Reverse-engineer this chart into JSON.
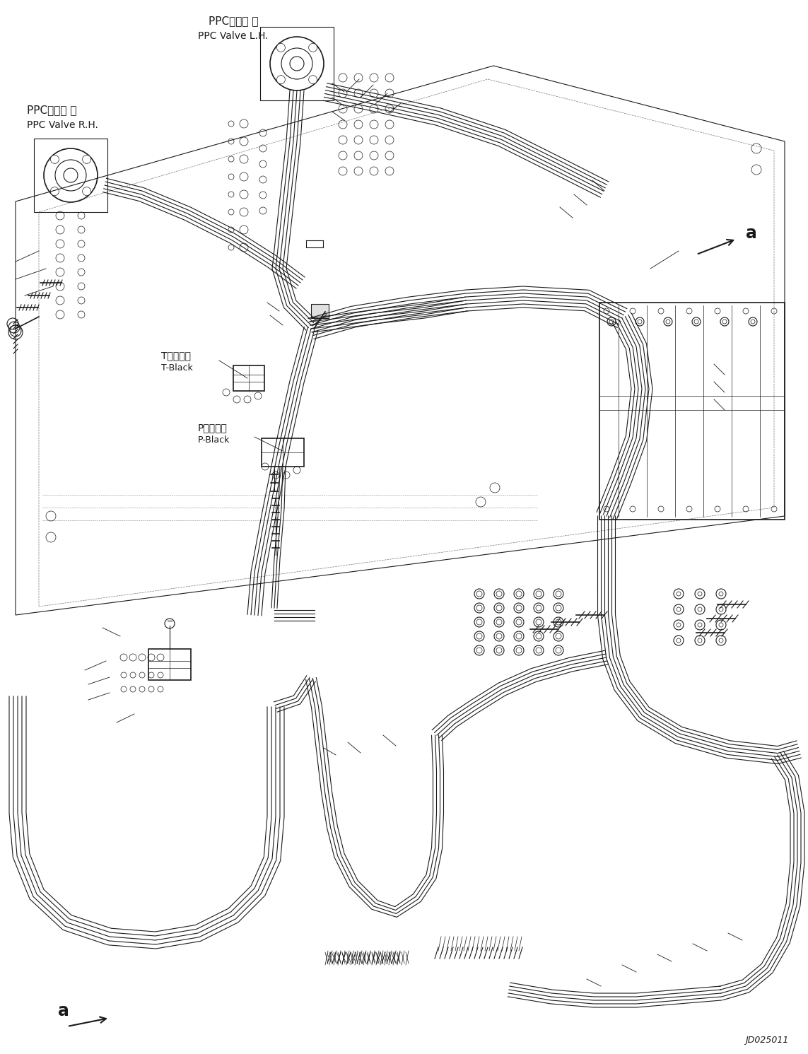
{
  "bg_color": "#ffffff",
  "line_color": "#1a1a1a",
  "figsize": [
    11.43,
    14.91
  ],
  "dpi": 100,
  "labels": {
    "ppc_valve_lh_jp": "PPCバルブ 左",
    "ppc_valve_lh_en": "PPC Valve L.H.",
    "ppc_valve_rh_jp": "PPCバルブ 右",
    "ppc_valve_rh_en": "PPC Valve R.H.",
    "t_block_jp": "Tブロック",
    "t_block_en": "T-Black",
    "p_block_jp": "Pブロック",
    "p_block_en": "P-Black",
    "ref_a": "a",
    "part_num": "JD025011"
  }
}
